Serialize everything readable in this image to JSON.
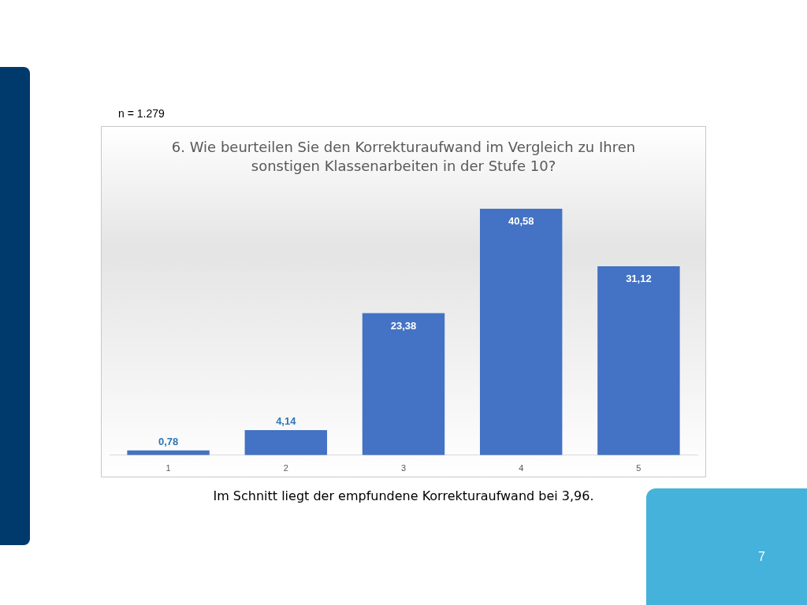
{
  "chart_data": {
    "type": "bar",
    "title": "6. Wie beurteilen Sie den Korrekturaufwand im Vergleich zu Ihren sonstigen Klassenarbeiten in der Stufe 10?",
    "categories": [
      "1",
      "2",
      "3",
      "4",
      "5"
    ],
    "values": [
      0.78,
      4.14,
      23.38,
      40.58,
      31.12
    ],
    "value_labels": [
      "0,78",
      "4,14",
      "23,38",
      "40,58",
      "31,12"
    ],
    "color": "#4472c4",
    "annotations": [
      "n = 1.279",
      "Im Schnitt liegt der empfundene Korrekturaufwand bei 3,96.",
      "7"
    ],
    "legend": false
  }
}
